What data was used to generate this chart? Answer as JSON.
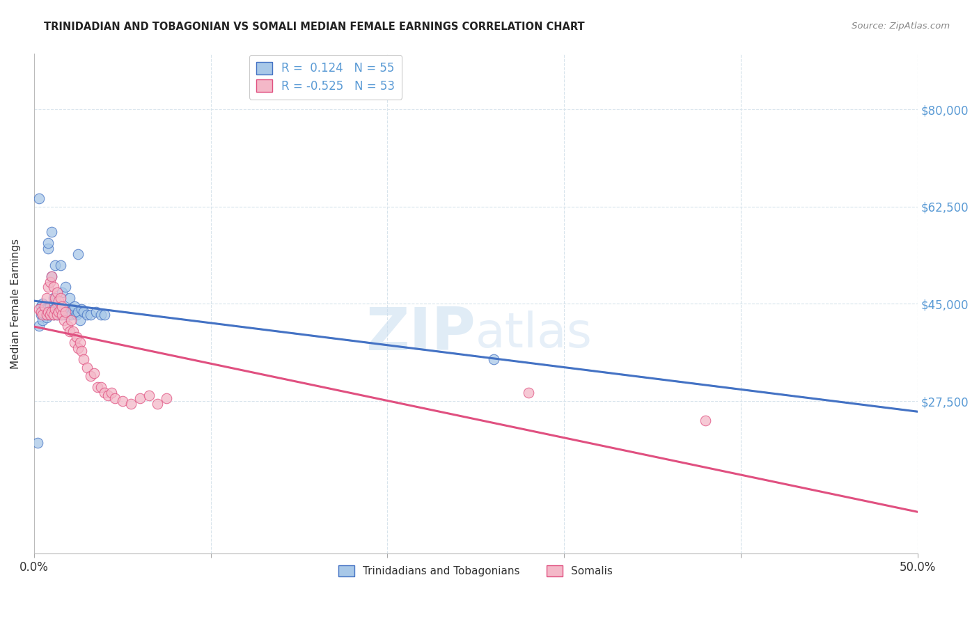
{
  "title": "TRINIDADIAN AND TOBAGONIAN VS SOMALI MEDIAN FEMALE EARNINGS CORRELATION CHART",
  "source": "Source: ZipAtlas.com",
  "ylabel": "Median Female Earnings",
  "xlim": [
    0.0,
    0.5
  ],
  "ylim": [
    0,
    90000
  ],
  "ytick_values": [
    27500,
    45000,
    62500,
    80000
  ],
  "xtick_positions": [
    0.0,
    0.1,
    0.2,
    0.3,
    0.4,
    0.5
  ],
  "xtick_labels": [
    "0.0%",
    "",
    "",
    "",
    "",
    "50.0%"
  ],
  "r_blue": 0.124,
  "n_blue": 55,
  "r_pink": -0.525,
  "n_pink": 53,
  "blue_scatter_color": "#a8c8e8",
  "blue_line_color": "#4472c4",
  "blue_dash_color": "#a0c8e8",
  "pink_scatter_color": "#f4b8c8",
  "pink_line_color": "#e05080",
  "watermark_color": "#c8ddf0",
  "legend_label_blue": "Trinidadians and Tobagonians",
  "legend_label_pink": "Somalis",
  "blue_scatter_x": [
    0.002,
    0.003,
    0.004,
    0.004,
    0.005,
    0.005,
    0.005,
    0.006,
    0.006,
    0.007,
    0.007,
    0.007,
    0.008,
    0.008,
    0.009,
    0.009,
    0.01,
    0.01,
    0.01,
    0.011,
    0.011,
    0.011,
    0.012,
    0.012,
    0.013,
    0.013,
    0.014,
    0.014,
    0.015,
    0.015,
    0.016,
    0.016,
    0.017,
    0.018,
    0.018,
    0.019,
    0.02,
    0.02,
    0.021,
    0.022,
    0.023,
    0.024,
    0.025,
    0.026,
    0.027,
    0.028,
    0.03,
    0.032,
    0.035,
    0.038,
    0.04,
    0.003,
    0.008,
    0.26,
    0.025
  ],
  "blue_scatter_y": [
    20000,
    41000,
    43000,
    44500,
    42000,
    43500,
    45000,
    43000,
    44000,
    42500,
    43500,
    44000,
    43000,
    55000,
    43000,
    44500,
    43500,
    50000,
    58000,
    43000,
    44000,
    46000,
    43500,
    52000,
    43000,
    45000,
    43500,
    44000,
    43000,
    52000,
    43500,
    47000,
    44000,
    43000,
    48000,
    43000,
    43500,
    46000,
    43000,
    44000,
    44500,
    43000,
    43500,
    42000,
    44000,
    43500,
    43000,
    43000,
    43500,
    43000,
    43000,
    64000,
    56000,
    35000,
    54000
  ],
  "pink_scatter_x": [
    0.003,
    0.004,
    0.005,
    0.006,
    0.007,
    0.007,
    0.008,
    0.008,
    0.009,
    0.009,
    0.01,
    0.01,
    0.011,
    0.011,
    0.012,
    0.012,
    0.013,
    0.013,
    0.014,
    0.014,
    0.015,
    0.015,
    0.016,
    0.016,
    0.017,
    0.018,
    0.019,
    0.02,
    0.021,
    0.022,
    0.023,
    0.024,
    0.025,
    0.026,
    0.027,
    0.028,
    0.03,
    0.032,
    0.034,
    0.036,
    0.038,
    0.04,
    0.042,
    0.044,
    0.046,
    0.05,
    0.055,
    0.06,
    0.065,
    0.07,
    0.075,
    0.38,
    0.28
  ],
  "pink_scatter_y": [
    44000,
    43500,
    43000,
    44500,
    43000,
    46000,
    43500,
    48000,
    43000,
    49000,
    43500,
    50000,
    43000,
    48000,
    44000,
    46000,
    43000,
    47000,
    43500,
    45500,
    44000,
    46000,
    43000,
    44500,
    42000,
    43500,
    41000,
    40000,
    42000,
    40000,
    38000,
    39000,
    37000,
    38000,
    36500,
    35000,
    33500,
    32000,
    32500,
    30000,
    30000,
    29000,
    28500,
    29000,
    28000,
    27500,
    27000,
    28000,
    28500,
    27000,
    28000,
    24000,
    29000
  ]
}
